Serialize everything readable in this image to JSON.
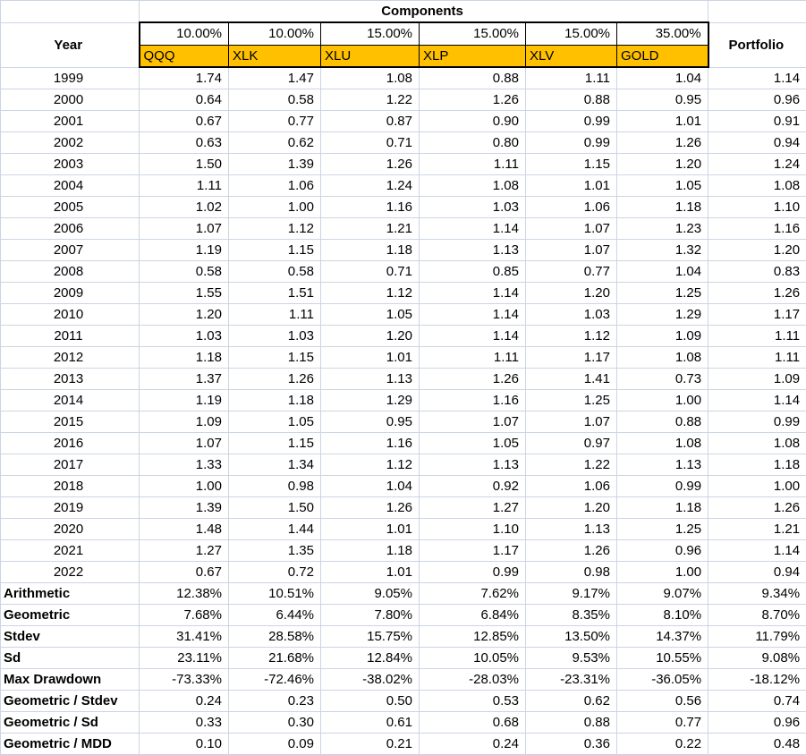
{
  "colors": {
    "ticker_bg": "#FFC000",
    "gridline": "#ccd5e4",
    "header_border": "#000000"
  },
  "header": {
    "components": "Components",
    "year": "Year",
    "portfolio": "Portfolio",
    "weights": [
      "10.00%",
      "10.00%",
      "15.00%",
      "15.00%",
      "15.00%",
      "35.00%"
    ],
    "tickers": [
      "QQQ",
      "XLK",
      "XLU",
      "XLP",
      "XLV",
      "GOLD"
    ]
  },
  "rows": [
    {
      "year": "1999",
      "values": [
        "1.74",
        "1.47",
        "1.08",
        "0.88",
        "1.11",
        "1.04",
        "1.14"
      ]
    },
    {
      "year": "2000",
      "values": [
        "0.64",
        "0.58",
        "1.22",
        "1.26",
        "0.88",
        "0.95",
        "0.96"
      ]
    },
    {
      "year": "2001",
      "values": [
        "0.67",
        "0.77",
        "0.87",
        "0.90",
        "0.99",
        "1.01",
        "0.91"
      ]
    },
    {
      "year": "2002",
      "values": [
        "0.63",
        "0.62",
        "0.71",
        "0.80",
        "0.99",
        "1.26",
        "0.94"
      ]
    },
    {
      "year": "2003",
      "values": [
        "1.50",
        "1.39",
        "1.26",
        "1.11",
        "1.15",
        "1.20",
        "1.24"
      ]
    },
    {
      "year": "2004",
      "values": [
        "1.11",
        "1.06",
        "1.24",
        "1.08",
        "1.01",
        "1.05",
        "1.08"
      ]
    },
    {
      "year": "2005",
      "values": [
        "1.02",
        "1.00",
        "1.16",
        "1.03",
        "1.06",
        "1.18",
        "1.10"
      ]
    },
    {
      "year": "2006",
      "values": [
        "1.07",
        "1.12",
        "1.21",
        "1.14",
        "1.07",
        "1.23",
        "1.16"
      ]
    },
    {
      "year": "2007",
      "values": [
        "1.19",
        "1.15",
        "1.18",
        "1.13",
        "1.07",
        "1.32",
        "1.20"
      ]
    },
    {
      "year": "2008",
      "values": [
        "0.58",
        "0.58",
        "0.71",
        "0.85",
        "0.77",
        "1.04",
        "0.83"
      ]
    },
    {
      "year": "2009",
      "values": [
        "1.55",
        "1.51",
        "1.12",
        "1.14",
        "1.20",
        "1.25",
        "1.26"
      ]
    },
    {
      "year": "2010",
      "values": [
        "1.20",
        "1.11",
        "1.05",
        "1.14",
        "1.03",
        "1.29",
        "1.17"
      ]
    },
    {
      "year": "2011",
      "values": [
        "1.03",
        "1.03",
        "1.20",
        "1.14",
        "1.12",
        "1.09",
        "1.11"
      ]
    },
    {
      "year": "2012",
      "values": [
        "1.18",
        "1.15",
        "1.01",
        "1.11",
        "1.17",
        "1.08",
        "1.11"
      ]
    },
    {
      "year": "2013",
      "values": [
        "1.37",
        "1.26",
        "1.13",
        "1.26",
        "1.41",
        "0.73",
        "1.09"
      ]
    },
    {
      "year": "2014",
      "values": [
        "1.19",
        "1.18",
        "1.29",
        "1.16",
        "1.25",
        "1.00",
        "1.14"
      ]
    },
    {
      "year": "2015",
      "values": [
        "1.09",
        "1.05",
        "0.95",
        "1.07",
        "1.07",
        "0.88",
        "0.99"
      ]
    },
    {
      "year": "2016",
      "values": [
        "1.07",
        "1.15",
        "1.16",
        "1.05",
        "0.97",
        "1.08",
        "1.08"
      ]
    },
    {
      "year": "2017",
      "values": [
        "1.33",
        "1.34",
        "1.12",
        "1.13",
        "1.22",
        "1.13",
        "1.18"
      ]
    },
    {
      "year": "2018",
      "values": [
        "1.00",
        "0.98",
        "1.04",
        "0.92",
        "1.06",
        "0.99",
        "1.00"
      ]
    },
    {
      "year": "2019",
      "values": [
        "1.39",
        "1.50",
        "1.26",
        "1.27",
        "1.20",
        "1.18",
        "1.26"
      ]
    },
    {
      "year": "2020",
      "values": [
        "1.48",
        "1.44",
        "1.01",
        "1.10",
        "1.13",
        "1.25",
        "1.21"
      ]
    },
    {
      "year": "2021",
      "values": [
        "1.27",
        "1.35",
        "1.18",
        "1.17",
        "1.26",
        "0.96",
        "1.14"
      ]
    },
    {
      "year": "2022",
      "values": [
        "0.67",
        "0.72",
        "1.01",
        "0.99",
        "0.98",
        "1.00",
        "0.94"
      ]
    }
  ],
  "stats": [
    {
      "label": "Arithmetic",
      "values": [
        "12.38%",
        "10.51%",
        "9.05%",
        "7.62%",
        "9.17%",
        "9.07%",
        "9.34%"
      ]
    },
    {
      "label": "Geometric",
      "values": [
        "7.68%",
        "6.44%",
        "7.80%",
        "6.84%",
        "8.35%",
        "8.10%",
        "8.70%"
      ]
    },
    {
      "label": "Stdev",
      "values": [
        "31.41%",
        "28.58%",
        "15.75%",
        "12.85%",
        "13.50%",
        "14.37%",
        "11.79%"
      ]
    },
    {
      "label": "Sd",
      "values": [
        "23.11%",
        "21.68%",
        "12.84%",
        "10.05%",
        "9.53%",
        "10.55%",
        "9.08%"
      ]
    },
    {
      "label": "Max Drawdown",
      "values": [
        "-73.33%",
        "-72.46%",
        "-38.02%",
        "-28.03%",
        "-23.31%",
        "-36.05%",
        "-18.12%"
      ]
    },
    {
      "label": "Geometric / Stdev",
      "values": [
        "0.24",
        "0.23",
        "0.50",
        "0.53",
        "0.62",
        "0.56",
        "0.74"
      ]
    },
    {
      "label": "Geometric / Sd",
      "values": [
        "0.33",
        "0.30",
        "0.61",
        "0.68",
        "0.88",
        "0.77",
        "0.96"
      ]
    },
    {
      "label": "Geometric / MDD",
      "values": [
        "0.10",
        "0.09",
        "0.21",
        "0.24",
        "0.36",
        "0.22",
        "0.48"
      ]
    }
  ]
}
